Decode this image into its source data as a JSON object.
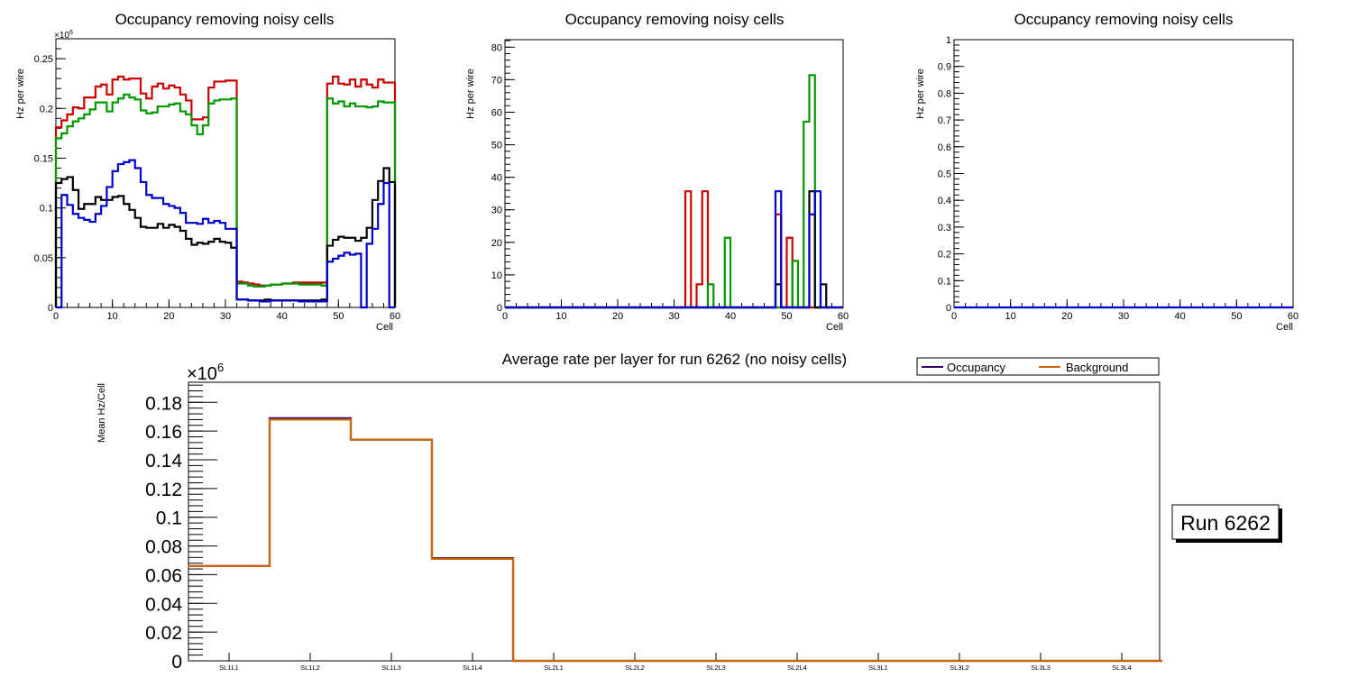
{
  "chart_data": [
    {
      "type": "line",
      "title": "Occupancy removing noisy cells",
      "xlabel": "Cell",
      "ylabel": "Hz per wire",
      "y_multiplier": "×10^6",
      "xlim": [
        0,
        60
      ],
      "ylim": [
        0,
        0.27
      ],
      "x_ticks": [
        0,
        10,
        20,
        30,
        40,
        50,
        60
      ],
      "y_ticks": [
        0,
        0.05,
        0.1,
        0.15,
        0.2,
        0.25
      ],
      "y_tick_labels": [
        "0",
        "0.05",
        "0.1",
        "0.15",
        "0.2",
        "0.25"
      ],
      "histogram_step": true,
      "series": [
        {
          "name": "layer-red",
          "color": "#cc0000",
          "values": [
            0.181,
            0.188,
            0.194,
            0.201,
            0.2,
            0.211,
            0.211,
            0.222,
            0.224,
            0.214,
            0.229,
            0.232,
            0.229,
            0.23,
            0.23,
            0.215,
            0.21,
            0.222,
            0.225,
            0.22,
            0.223,
            0.221,
            0.214,
            0.208,
            0.189,
            0.189,
            0.191,
            0.221,
            0.227,
            0.227,
            0.228,
            0.228,
            0.026,
            0.025,
            0.024,
            0.023,
            0.022,
            0.022,
            0.023,
            0.023,
            0.024,
            0.024,
            0.025,
            0.025,
            0.025,
            0.025,
            0.025,
            0.025,
            0.225,
            0.232,
            0.225,
            0.224,
            0.229,
            0.222,
            0.229,
            0.224,
            0.221,
            0.229,
            0.226,
            0.226
          ]
        },
        {
          "name": "layer-green",
          "color": "#009900",
          "values": [
            0.17,
            0.175,
            0.182,
            0.187,
            0.19,
            0.194,
            0.199,
            0.206,
            0.206,
            0.197,
            0.206,
            0.21,
            0.214,
            0.211,
            0.209,
            0.198,
            0.195,
            0.196,
            0.202,
            0.202,
            0.204,
            0.205,
            0.197,
            0.194,
            0.183,
            0.174,
            0.183,
            0.205,
            0.208,
            0.209,
            0.209,
            0.21,
            0.024,
            0.024,
            0.022,
            0.021,
            0.021,
            0.022,
            0.023,
            0.023,
            0.024,
            0.024,
            0.024,
            0.023,
            0.023,
            0.023,
            0.023,
            0.022,
            0.21,
            0.205,
            0.207,
            0.202,
            0.205,
            0.202,
            0.202,
            0.201,
            0.202,
            0.207,
            0.206,
            0.206
          ]
        },
        {
          "name": "layer-black",
          "color": "#000000",
          "values": [
            0.125,
            0.129,
            0.131,
            0.118,
            0.099,
            0.104,
            0.104,
            0.111,
            0.108,
            0.108,
            0.111,
            0.112,
            0.104,
            0.098,
            0.09,
            0.081,
            0.08,
            0.08,
            0.084,
            0.08,
            0.083,
            0.081,
            0.077,
            0.069,
            0.063,
            0.065,
            0.064,
            0.066,
            0.069,
            0.066,
            0.065,
            0.06,
            0.008,
            0.008,
            0.007,
            0.007,
            0.007,
            0.008,
            0.007,
            0.007,
            0.007,
            0.007,
            0.007,
            0.007,
            0.007,
            0.007,
            0.007,
            0.008,
            0.062,
            0.068,
            0.071,
            0.07,
            0.07,
            0.067,
            0.07,
            0.08,
            0.108,
            0.127,
            0.14,
            0.126
          ]
        },
        {
          "name": "layer-blue",
          "color": "#0000cc",
          "values": [
            0.0,
            0.113,
            0.103,
            0.094,
            0.09,
            0.088,
            0.086,
            0.094,
            0.102,
            0.121,
            0.137,
            0.144,
            0.146,
            0.148,
            0.14,
            0.126,
            0.113,
            0.11,
            0.11,
            0.104,
            0.102,
            0.1,
            0.095,
            0.085,
            0.085,
            0.084,
            0.089,
            0.085,
            0.087,
            0.085,
            0.079,
            0.079,
            0.008,
            0.008,
            0.007,
            0.007,
            0.006,
            0.006,
            0.007,
            0.007,
            0.007,
            0.007,
            0.007,
            0.006,
            0.006,
            0.006,
            0.006,
            0.006,
            0.046,
            0.049,
            0.052,
            0.055,
            0.053,
            0.054,
            0.0,
            0.064,
            0.079,
            0.104,
            0.125,
            0.0
          ]
        }
      ]
    },
    {
      "type": "line",
      "title": "Occupancy removing noisy cells",
      "xlabel": "Cell",
      "ylabel": "Hz per wire",
      "xlim": [
        0,
        60
      ],
      "ylim": [
        0,
        82.3
      ],
      "x_ticks": [
        0,
        10,
        20,
        30,
        40,
        50,
        60
      ],
      "y_ticks": [
        0,
        10,
        20,
        30,
        40,
        50,
        60,
        70,
        80
      ],
      "y_tick_labels": [
        "0",
        "10",
        "20",
        "30",
        "40",
        "50",
        "60",
        "70",
        "80"
      ],
      "histogram_step": true,
      "series": [
        {
          "name": "layer-red",
          "color": "#cc0000",
          "bins": {
            "32": 35.7,
            "34": 7.1,
            "35": 35.7,
            "48": 28.6,
            "50": 21.4
          }
        },
        {
          "name": "layer-green",
          "color": "#009900",
          "bins": {
            "36": 7.1,
            "39": 21.4,
            "51": 14.3,
            "53": 57.1,
            "54": 71.4
          }
        },
        {
          "name": "layer-black",
          "color": "#000000",
          "bins": {
            "48": 7.1,
            "54": 35.7,
            "56": 7.1
          }
        },
        {
          "name": "layer-blue",
          "color": "#0000cc",
          "bins": {
            "48": 35.7,
            "54": 28.6,
            "55": 35.7
          }
        }
      ]
    },
    {
      "type": "line",
      "title": "Occupancy removing noisy cells",
      "xlabel": "Cell",
      "ylabel": "Hz per wire",
      "xlim": [
        0,
        60
      ],
      "ylim": [
        0,
        1
      ],
      "x_ticks": [
        0,
        10,
        20,
        30,
        40,
        50,
        60
      ],
      "y_ticks": [
        0,
        0.1,
        0.2,
        0.3,
        0.4,
        0.5,
        0.6,
        0.7,
        0.8,
        0.9,
        1
      ],
      "y_tick_labels": [
        "0",
        "0.1",
        "0.2",
        "0.3",
        "0.4",
        "0.5",
        "0.6",
        "0.7",
        "0.8",
        "0.9",
        "1"
      ],
      "histogram_step": true,
      "series": [
        {
          "name": "layer-blue",
          "color": "#0000cc",
          "values_all": 0
        }
      ]
    },
    {
      "type": "bar",
      "title": "Average rate per layer for run 6262 (no noisy cells)",
      "xlabel": "",
      "ylabel": "Mean Hz/Cell",
      "y_multiplier": "×10^6",
      "ylim": [
        0,
        0.194
      ],
      "y_ticks": [
        0,
        0.02,
        0.04,
        0.06,
        0.08,
        0.1,
        0.12,
        0.14,
        0.16,
        0.18
      ],
      "y_tick_labels": [
        "0",
        "0.02",
        "0.04",
        "0.06",
        "0.08",
        "0.1",
        "0.12",
        "0.14",
        "0.16",
        "0.18"
      ],
      "categories": [
        "SL1L1",
        "SL1L2",
        "SL1L3",
        "SL1L4",
        "SL2L1",
        "SL2L2",
        "SL2L3",
        "SL2L4",
        "SL3L1",
        "SL3L2",
        "SL3L3",
        "SL3L4"
      ],
      "legend_position": "top-right",
      "series": [
        {
          "name": "Occupancy",
          "color": "#330066",
          "values": [
            0.066,
            0.169,
            0.154,
            0.0715,
            0,
            0,
            0,
            0,
            0,
            0,
            0,
            0
          ]
        },
        {
          "name": "Background",
          "color": "#cc6600",
          "values": [
            0.066,
            0.168,
            0.154,
            0.071,
            0,
            0,
            0,
            0,
            0,
            0,
            0,
            0
          ]
        }
      ]
    }
  ],
  "run_label": "Run 6262"
}
